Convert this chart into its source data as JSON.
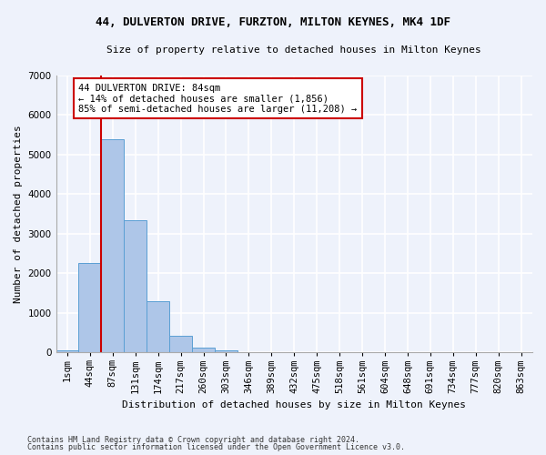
{
  "title": "44, DULVERTON DRIVE, FURZTON, MILTON KEYNES, MK4 1DF",
  "subtitle": "Size of property relative to detached houses in Milton Keynes",
  "xlabel": "Distribution of detached houses by size in Milton Keynes",
  "ylabel": "Number of detached properties",
  "footer_line1": "Contains HM Land Registry data © Crown copyright and database right 2024.",
  "footer_line2": "Contains public sector information licensed under the Open Government Licence v3.0.",
  "bar_labels": [
    "1sqm",
    "44sqm",
    "87sqm",
    "131sqm",
    "174sqm",
    "217sqm",
    "260sqm",
    "303sqm",
    "346sqm",
    "389sqm",
    "432sqm",
    "475sqm",
    "518sqm",
    "561sqm",
    "604sqm",
    "648sqm",
    "691sqm",
    "734sqm",
    "777sqm",
    "820sqm",
    "863sqm"
  ],
  "bar_values": [
    60,
    2250,
    5400,
    3350,
    1300,
    430,
    120,
    40,
    0,
    0,
    0,
    0,
    0,
    0,
    0,
    0,
    0,
    0,
    0,
    0,
    0
  ],
  "bar_color": "#aec6e8",
  "bar_edge_color": "#5a9fd4",
  "background_color": "#eef2fb",
  "grid_color": "#ffffff",
  "property_line_label": "44 DULVERTON DRIVE: 84sqm",
  "annotation_line1": "← 14% of detached houses are smaller (1,856)",
  "annotation_line2": "85% of semi-detached houses are larger (11,208) →",
  "annotation_box_color": "#ffffff",
  "annotation_box_edge": "#cc0000",
  "vline_color": "#cc0000",
  "vline_x": 1.5,
  "ylim": [
    0,
    7000
  ],
  "yticks": [
    0,
    1000,
    2000,
    3000,
    4000,
    5000,
    6000,
    7000
  ],
  "title_fontsize": 9,
  "subtitle_fontsize": 8,
  "ylabel_fontsize": 8,
  "xlabel_fontsize": 8,
  "tick_fontsize": 7.5,
  "annot_fontsize": 7.5,
  "footer_fontsize": 6
}
